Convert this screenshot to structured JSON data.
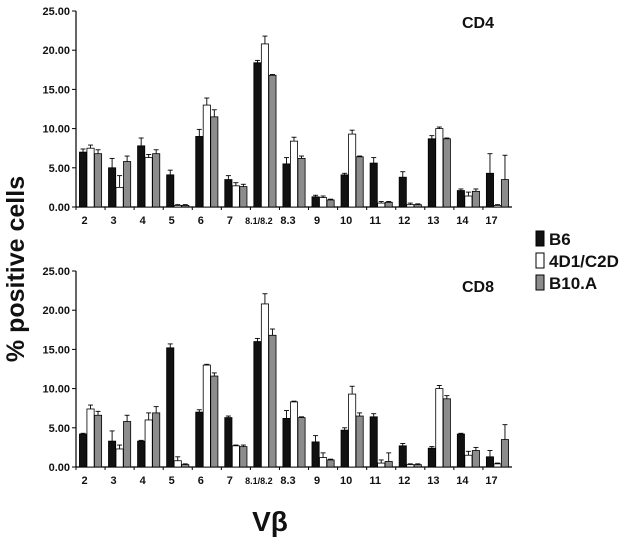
{
  "figure": {
    "ylabel": "% positive cells",
    "xlabel": "Vβ"
  },
  "legend": {
    "items": [
      {
        "label": "B6",
        "color": "#111111"
      },
      {
        "label": "4D1/C2D",
        "color": "#ffffff"
      },
      {
        "label": "B10.A",
        "color": "#8c8c8c"
      }
    ]
  },
  "chart_data": [
    {
      "type": "bar",
      "title": "CD4",
      "categories": [
        "2",
        "3",
        "4",
        "5",
        "6",
        "7",
        "8.1/8.2",
        "8.3",
        "9",
        "10",
        "11",
        "12",
        "13",
        "14",
        "17"
      ],
      "ylim": [
        0,
        25
      ],
      "yticks": [
        "0.00",
        "5.00",
        "10.00",
        "15.00",
        "20.00",
        "25.00"
      ],
      "series": [
        {
          "name": "B6",
          "values": [
            7.0,
            5.0,
            7.8,
            4.1,
            9.0,
            3.5,
            18.4,
            5.5,
            1.3,
            4.1,
            5.6,
            3.8,
            8.7,
            2.1,
            4.3
          ],
          "errors": [
            0.4,
            1.2,
            1.0,
            0.6,
            0.9,
            0.5,
            0.3,
            0.8,
            0.2,
            0.2,
            0.7,
            0.7,
            0.4,
            0.2,
            2.5
          ]
        },
        {
          "name": "4D1/C2D",
          "values": [
            7.5,
            2.5,
            6.3,
            0.2,
            13.0,
            2.7,
            20.8,
            8.4,
            1.2,
            9.3,
            0.5,
            0.3,
            10.0,
            1.4,
            0.2
          ],
          "errors": [
            0.4,
            1.5,
            0.4,
            0.1,
            0.9,
            0.4,
            1.0,
            0.5,
            0.2,
            0.5,
            0.2,
            0.2,
            0.2,
            0.5,
            0.1
          ]
        },
        {
          "name": "B10.A",
          "values": [
            6.8,
            5.8,
            6.8,
            0.2,
            11.5,
            2.6,
            16.8,
            6.2,
            0.9,
            6.4,
            0.6,
            0.3,
            8.7,
            2.0,
            3.5
          ],
          "errors": [
            0.5,
            0.7,
            0.5,
            0.1,
            0.9,
            0.3,
            0.1,
            0.3,
            0.1,
            0.1,
            0.1,
            0.1,
            0.1,
            0.3,
            3.1
          ]
        }
      ]
    },
    {
      "type": "bar",
      "title": "CD8",
      "categories": [
        "2",
        "3",
        "4",
        "5",
        "6",
        "7",
        "8.1/8.2",
        "8.3",
        "9",
        "10",
        "11",
        "12",
        "13",
        "14",
        "17"
      ],
      "ylim": [
        0,
        25
      ],
      "yticks": [
        "0.00",
        "5.00",
        "10.00",
        "15.00",
        "20.00",
        "25.00"
      ],
      "series": [
        {
          "name": "B6",
          "values": [
            4.2,
            3.3,
            3.3,
            15.2,
            7.0,
            6.3,
            16.0,
            6.2,
            3.2,
            4.7,
            6.4,
            2.7,
            2.4,
            4.2,
            1.3
          ],
          "errors": [
            0.1,
            1.3,
            0.1,
            0.5,
            0.3,
            0.2,
            0.4,
            1.0,
            0.8,
            0.3,
            0.4,
            0.3,
            0.2,
            0.1,
            0.8
          ]
        },
        {
          "name": "4D1/C2D",
          "values": [
            7.4,
            2.3,
            6.0,
            0.8,
            13.0,
            2.7,
            20.8,
            8.3,
            1.2,
            9.3,
            0.5,
            0.3,
            10.0,
            1.5,
            0.4
          ],
          "errors": [
            0.5,
            0.5,
            0.9,
            0.5,
            0.1,
            0.1,
            1.3,
            0.1,
            0.6,
            1.0,
            0.4,
            0.1,
            0.4,
            0.5,
            0.1
          ]
        },
        {
          "name": "B10.A",
          "values": [
            6.6,
            5.8,
            6.9,
            0.3,
            11.6,
            2.6,
            16.8,
            6.3,
            0.9,
            6.5,
            0.7,
            0.3,
            8.7,
            2.1,
            3.5
          ],
          "errors": [
            0.5,
            0.8,
            0.8,
            0.1,
            0.4,
            0.2,
            0.8,
            0.1,
            0.1,
            0.4,
            1.1,
            0.1,
            0.4,
            0.4,
            1.9
          ]
        }
      ]
    }
  ]
}
